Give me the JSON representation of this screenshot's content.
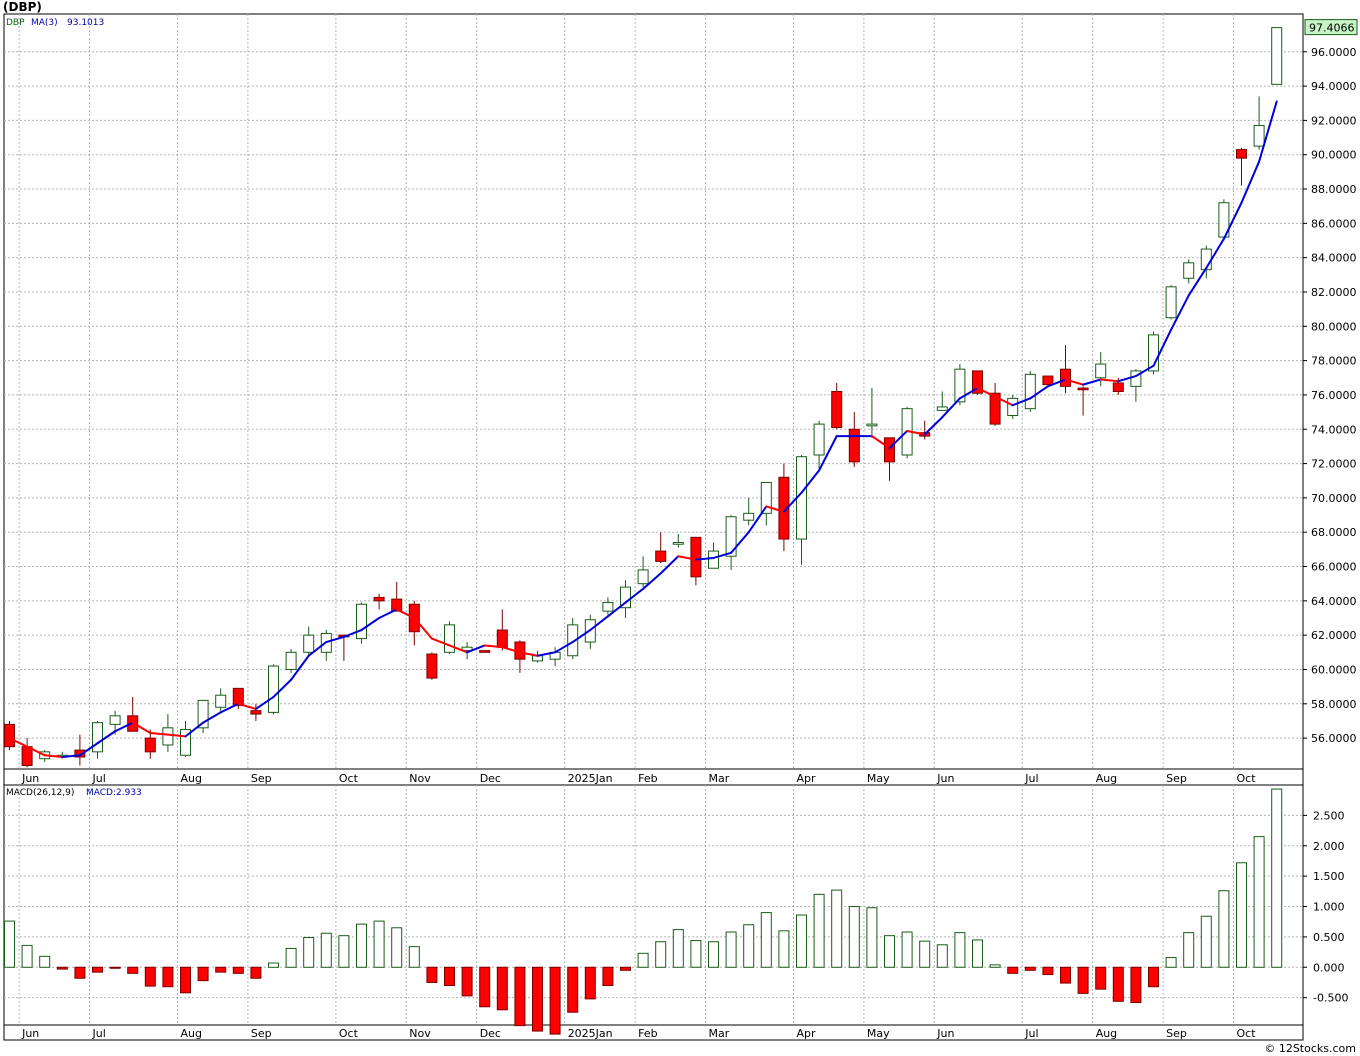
{
  "title": "(DBP)",
  "watermark": "© 12Stocks.com",
  "colors": {
    "up_fill": "#ffffff",
    "up_stroke": "#1a5c1a",
    "down_fill": "#ff0000",
    "down_stroke": "#7a0000",
    "ma_up": "#0000dd",
    "ma_down": "#ff0000",
    "grid": "#b4b4b4",
    "last_price_bg": "#c8f5c8",
    "macd_up_stroke": "#1a5c1a",
    "macd_down_fill": "#ff0000"
  },
  "chart_data": [
    {
      "type": "candlestick",
      "name": "price",
      "legend": {
        "symbol": "DBP",
        "ma_label": "MA(3)",
        "ma_value": "93.1013"
      },
      "last_price_label": "97.4066",
      "ylim": [
        54.2,
        98.2
      ],
      "y_ticks": [
        56,
        58,
        60,
        62,
        64,
        66,
        68,
        70,
        72,
        74,
        76,
        78,
        80,
        82,
        84,
        86,
        88,
        90,
        92,
        94,
        96
      ],
      "y_tick_labels": [
        "56.0000",
        "58.0000",
        "60.0000",
        "62.0000",
        "64.0000",
        "66.0000",
        "68.0000",
        "70.0000",
        "72.0000",
        "74.0000",
        "76.0000",
        "78.0000",
        "80.0000",
        "82.0000",
        "84.0000",
        "86.0000",
        "88.0000",
        "90.0000",
        "92.0000",
        "94.0000",
        "96.0000"
      ],
      "x_labels": [
        {
          "label": "Jun",
          "i": 1
        },
        {
          "label": "Jul",
          "i": 5
        },
        {
          "label": "Aug",
          "i": 10
        },
        {
          "label": "Sep",
          "i": 14
        },
        {
          "label": "Oct",
          "i": 19
        },
        {
          "label": "Nov",
          "i": 23
        },
        {
          "label": "Dec",
          "i": 27
        },
        {
          "label": "2025Jan",
          "i": 32
        },
        {
          "label": "Feb",
          "i": 36
        },
        {
          "label": "Mar",
          "i": 40
        },
        {
          "label": "Apr",
          "i": 45
        },
        {
          "label": "May",
          "i": 49
        },
        {
          "label": "Jun",
          "i": 53
        },
        {
          "label": "Jul",
          "i": 58
        },
        {
          "label": "Aug",
          "i": 62
        },
        {
          "label": "Sep",
          "i": 66
        },
        {
          "label": "Oct",
          "i": 70
        }
      ],
      "candles": [
        [
          56.8,
          57.0,
          55.3,
          55.5
        ],
        [
          55.5,
          56.0,
          54.3,
          54.4
        ],
        [
          54.8,
          55.3,
          54.6,
          55.2
        ],
        [
          55.0,
          55.2,
          54.8,
          55.0
        ],
        [
          55.3,
          56.2,
          54.4,
          54.9
        ],
        [
          55.2,
          57.0,
          54.8,
          56.9
        ],
        [
          56.8,
          57.6,
          56.2,
          57.3
        ],
        [
          57.3,
          58.4,
          56.4,
          56.4
        ],
        [
          56.0,
          56.5,
          54.8,
          55.2
        ],
        [
          55.6,
          57.4,
          55.2,
          56.6
        ],
        [
          55.0,
          57.0,
          54.9,
          56.5
        ],
        [
          56.6,
          58.2,
          56.3,
          58.2
        ],
        [
          57.8,
          58.9,
          57.5,
          58.5
        ],
        [
          58.9,
          58.9,
          57.7,
          57.9
        ],
        [
          57.6,
          58.0,
          57.0,
          57.4
        ],
        [
          57.5,
          60.3,
          57.4,
          60.2
        ],
        [
          60.0,
          61.2,
          59.8,
          61.0
        ],
        [
          61.0,
          62.5,
          60.8,
          62.0
        ],
        [
          61.0,
          62.3,
          60.5,
          62.1
        ],
        [
          62.0,
          62.0,
          60.5,
          61.9
        ],
        [
          61.8,
          63.9,
          61.5,
          63.8
        ],
        [
          64.2,
          64.4,
          63.5,
          64.0
        ],
        [
          64.1,
          65.1,
          63.4,
          63.4
        ],
        [
          63.8,
          64.0,
          61.4,
          62.2
        ],
        [
          60.9,
          61.0,
          59.4,
          59.5
        ],
        [
          61.0,
          62.8,
          60.9,
          62.6
        ],
        [
          61.1,
          61.6,
          60.6,
          61.3
        ],
        [
          61.1,
          61.1,
          61.0,
          61.0
        ],
        [
          62.3,
          63.5,
          61.1,
          61.3
        ],
        [
          61.6,
          61.7,
          59.8,
          60.6
        ],
        [
          60.5,
          61.1,
          60.4,
          60.8
        ],
        [
          60.6,
          61.3,
          60.2,
          61.0
        ],
        [
          60.8,
          63.0,
          60.6,
          62.6
        ],
        [
          61.6,
          63.2,
          61.2,
          62.9
        ],
        [
          63.4,
          64.2,
          63.2,
          63.9
        ],
        [
          63.6,
          65.2,
          63.0,
          64.8
        ],
        [
          65.0,
          66.6,
          64.8,
          65.8
        ],
        [
          66.9,
          68.0,
          66.2,
          66.3
        ],
        [
          67.3,
          67.9,
          67.1,
          67.4
        ],
        [
          67.7,
          67.7,
          64.9,
          65.4
        ],
        [
          65.9,
          67.4,
          65.9,
          66.9
        ],
        [
          66.6,
          69.0,
          65.8,
          68.9
        ],
        [
          68.7,
          70.0,
          68.4,
          69.1
        ],
        [
          69.1,
          70.5,
          68.4,
          70.9
        ],
        [
          71.2,
          72.0,
          66.9,
          67.6
        ],
        [
          67.6,
          72.5,
          66.1,
          72.4
        ],
        [
          72.5,
          74.5,
          71.7,
          74.3
        ],
        [
          76.2,
          76.7,
          74.0,
          74.1
        ],
        [
          74.0,
          75.0,
          71.8,
          72.1
        ],
        [
          74.2,
          76.4,
          73.5,
          74.3
        ],
        [
          73.5,
          73.5,
          71.0,
          72.1
        ],
        [
          72.5,
          75.3,
          72.3,
          75.2
        ],
        [
          73.8,
          74.5,
          73.4,
          73.6
        ],
        [
          75.1,
          76.2,
          75.1,
          75.3
        ],
        [
          75.6,
          77.8,
          75.4,
          77.5
        ],
        [
          77.4,
          77.4,
          76.0,
          76.1
        ],
        [
          76.1,
          76.7,
          74.2,
          74.3
        ],
        [
          74.8,
          76.0,
          74.6,
          75.8
        ],
        [
          75.2,
          77.4,
          75.0,
          77.2
        ],
        [
          77.1,
          77.1,
          76.6,
          76.6
        ],
        [
          77.5,
          78.9,
          76.1,
          76.5
        ],
        [
          76.4,
          76.5,
          74.8,
          76.3
        ],
        [
          77.0,
          78.5,
          76.5,
          77.8
        ],
        [
          76.7,
          77.0,
          76.0,
          76.2
        ],
        [
          76.5,
          77.5,
          75.6,
          77.4
        ],
        [
          77.4,
          79.7,
          77.2,
          79.5
        ],
        [
          80.5,
          82.4,
          80.4,
          82.3
        ],
        [
          82.8,
          83.9,
          82.5,
          83.7
        ],
        [
          83.3,
          84.7,
          82.8,
          84.5
        ],
        [
          85.2,
          87.4,
          85.0,
          87.2
        ],
        [
          90.3,
          90.4,
          88.2,
          89.8
        ],
        [
          90.5,
          93.4,
          90.3,
          91.7
        ],
        [
          94.1,
          97.4,
          94.1,
          97.4066
        ]
      ],
      "ma3": [
        56.0,
        55.5,
        55.0,
        54.9,
        55.0,
        55.7,
        56.4,
        56.9,
        56.3,
        56.2,
        56.1,
        56.9,
        57.5,
        58.0,
        57.7,
        58.4,
        59.4,
        60.8,
        61.6,
        61.9,
        62.3,
        63.0,
        63.5,
        63.0,
        61.8,
        61.4,
        61.0,
        61.4,
        61.3,
        61.0,
        60.8,
        61.0,
        61.6,
        62.3,
        63.1,
        63.9,
        64.7,
        65.6,
        66.6,
        66.4,
        66.5,
        66.8,
        68.0,
        69.5,
        69.2,
        70.3,
        71.6,
        73.6,
        73.6,
        73.6,
        72.9,
        73.9,
        73.7,
        74.7,
        75.8,
        76.4,
        75.9,
        75.4,
        75.8,
        76.5,
        76.9,
        76.6,
        76.9,
        76.8,
        77.1,
        77.7,
        79.8,
        81.8,
        83.4,
        85.1,
        87.2,
        89.6,
        93.1013
      ]
    },
    {
      "type": "bar",
      "name": "macd",
      "legend": {
        "label": "MACD(26,12,9)",
        "value_label": "MACD:2.933"
      },
      "ylim": [
        -0.95,
        3.0
      ],
      "y_ticks": [
        2.5,
        2.0,
        1.5,
        1.0,
        0.5,
        0.0,
        -0.5
      ],
      "y_tick_labels": [
        "2.500",
        "2.000",
        "1.500",
        "1.000",
        "0.500",
        "0.000",
        "-0.500"
      ],
      "values": [
        0.76,
        0.36,
        0.18,
        -0.03,
        -0.18,
        -0.08,
        -0.01,
        -0.1,
        -0.31,
        -0.32,
        -0.42,
        -0.22,
        -0.08,
        -0.1,
        -0.18,
        0.07,
        0.31,
        0.49,
        0.56,
        0.52,
        0.71,
        0.76,
        0.65,
        0.34,
        -0.25,
        -0.3,
        -0.47,
        -0.65,
        -0.7,
        -0.96,
        -1.05,
        -1.1,
        -0.74,
        -0.52,
        -0.3,
        -0.05,
        0.23,
        0.42,
        0.62,
        0.44,
        0.42,
        0.58,
        0.7,
        0.9,
        0.6,
        0.86,
        1.2,
        1.27,
        1.0,
        0.98,
        0.52,
        0.58,
        0.43,
        0.37,
        0.57,
        0.45,
        0.04,
        -0.1,
        -0.05,
        -0.12,
        -0.26,
        -0.43,
        -0.36,
        -0.56,
        -0.58,
        -0.32,
        0.16,
        0.57,
        0.84,
        1.26,
        1.72,
        2.15,
        2.933
      ]
    }
  ]
}
